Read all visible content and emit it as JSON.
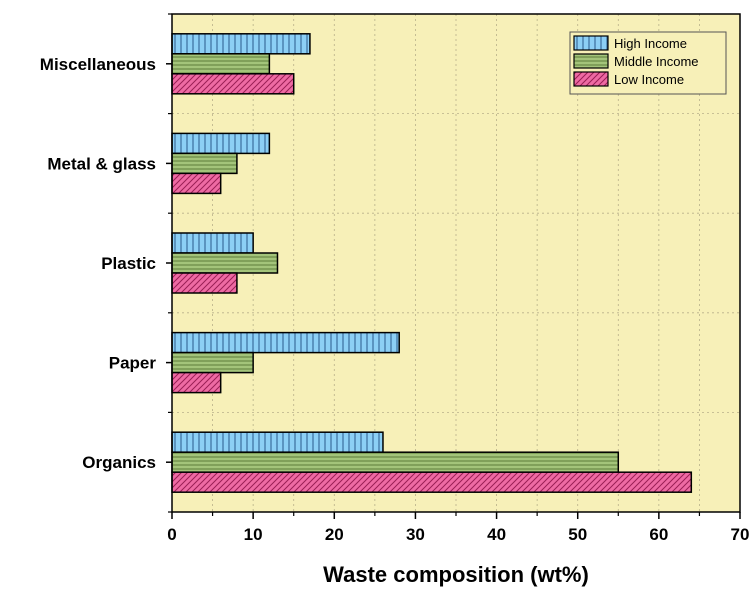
{
  "colors": {
    "plot_background": "#f7f0b8",
    "grid": "#b8b08a",
    "high_income": "#8ccff5",
    "middle_income": "#a3c47a",
    "low_income": "#ee6aa3",
    "axis": "#000000"
  },
  "chart_data": {
    "type": "bar",
    "orientation": "horizontal",
    "categories": [
      "Organics",
      "Paper",
      "Plastic",
      "Metal & glass",
      "Miscellaneous"
    ],
    "series": [
      {
        "name": "High Income",
        "values": [
          26,
          28,
          10,
          12,
          17
        ],
        "color": "#8ccff5",
        "pattern": "vertical-lines"
      },
      {
        "name": "Middle Income",
        "values": [
          55,
          10,
          13,
          8,
          12
        ],
        "color": "#a3c47a",
        "pattern": "horizontal-lines"
      },
      {
        "name": "Low Income",
        "values": [
          64,
          6,
          8,
          6,
          15
        ],
        "color": "#ee6aa3",
        "pattern": "diagonal-lines"
      }
    ],
    "xlabel": "Waste composition (wt%)",
    "ylabel": "",
    "xlim": [
      0,
      70
    ],
    "xticks": [
      0,
      10,
      20,
      30,
      40,
      50,
      60,
      70
    ],
    "grid": true,
    "legend_position": "top-right"
  }
}
